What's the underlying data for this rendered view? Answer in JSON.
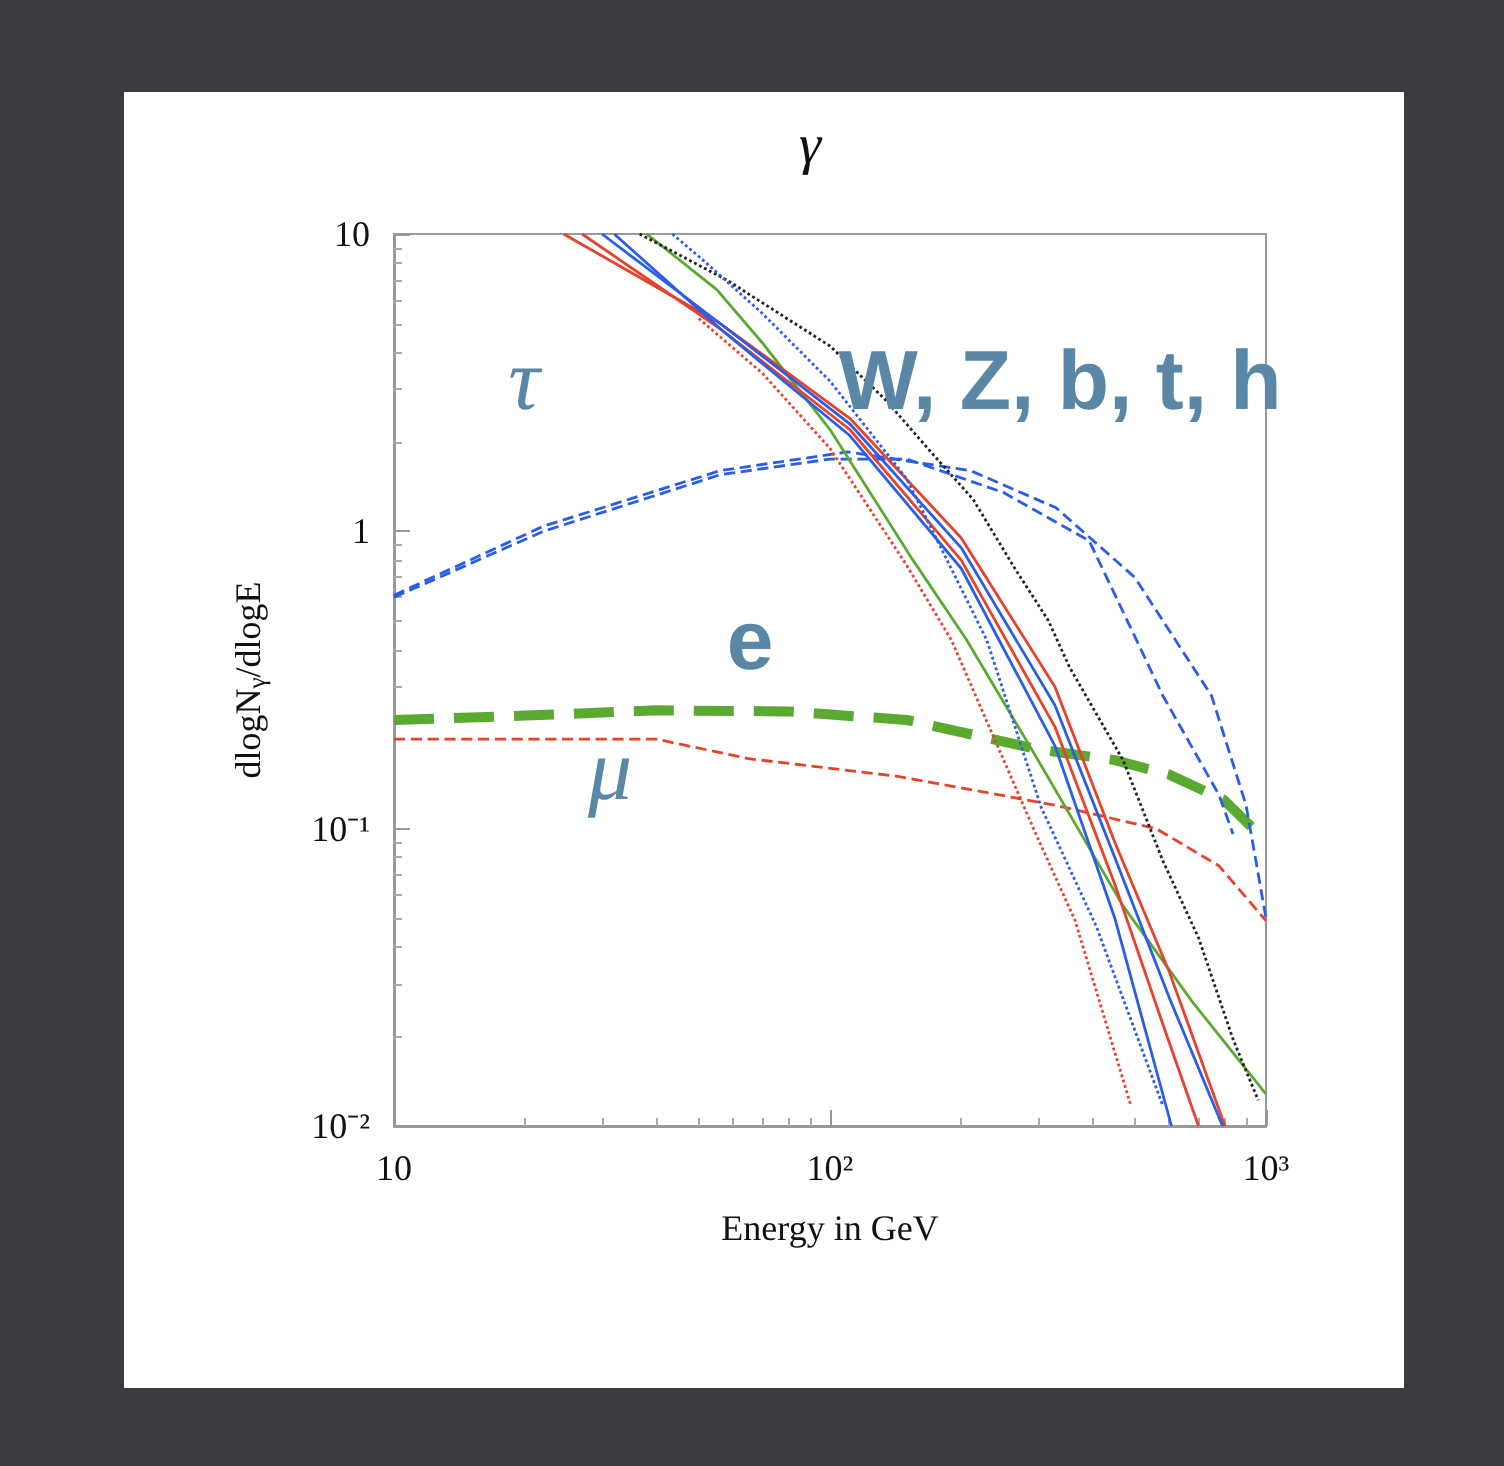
{
  "chart_data": {
    "type": "line",
    "title": "γ",
    "xlabel": "Energy in GeV",
    "ylabel": "dlogN$_{γ}$/dlogE",
    "log": "xy",
    "marker": "none",
    "grid": false,
    "xlim": [
      10,
      1000
    ],
    "xticks": [
      10,
      {
        "value": 100,
        "label": "10²"
      },
      {
        "value": 1000,
        "label": "10³"
      }
    ],
    "ylim": [
      0.01,
      10
    ],
    "yticks": [
      {
        "value": 0.01,
        "label": "10⁻²"
      },
      {
        "value": 0.1,
        "label": "10⁻¹"
      },
      1,
      10
    ],
    "annotations": [
      "τ",
      "e",
      "μ",
      "W, Z, b, t, h"
    ],
    "series": [
      {
        "color": "#5aaa32",
        "line_style": "dashed",
        "x": [
          10,
          20,
          40,
          80,
          150,
          300,
          450,
          600,
          800,
          970
        ],
        "values": [
          0.232,
          0.24,
          0.25,
          0.248,
          0.232,
          0.185,
          0.17,
          0.152,
          0.125,
          0.095
        ]
      },
      {
        "color": "#e8412c",
        "line_style": "dashed",
        "x": [
          10,
          20,
          40,
          65,
          143,
          328,
          560,
          780,
          1000
        ],
        "values": [
          0.2,
          0.2,
          0.2,
          0.172,
          0.15,
          0.12,
          0.1,
          0.075,
          0.049
        ]
      },
      {
        "color": "#2a5de8",
        "line_style": "dashed",
        "x": [
          10,
          22,
          56,
          110,
          210,
          330,
          500,
          750,
          900,
          1000
        ],
        "values": [
          0.61,
          1.04,
          1.6,
          1.85,
          1.6,
          1.2,
          0.7,
          0.28,
          0.12,
          0.05
        ]
      },
      {
        "color": "#2a5de8",
        "line_style": "dashed",
        "x": [
          10,
          22,
          56,
          100,
          150,
          250,
          393,
          505,
          580,
          780,
          840
        ],
        "values": [
          0.6,
          1.0,
          1.55,
          1.75,
          1.75,
          1.35,
          0.93,
          0.43,
          0.28,
          0.13,
          0.096
        ]
      },
      {
        "color": "#5aaa32",
        "line_style": "solid",
        "x": [
          38,
          55,
          70,
          100,
          155,
          206,
          300,
          470,
          680,
          1000
        ],
        "values": [
          10,
          6.5,
          4.3,
          2.2,
          0.8,
          0.43,
          0.17,
          0.055,
          0.026,
          0.0128
        ]
      },
      {
        "color": "#e8412c",
        "line_style": "solid",
        "x": [
          24.5,
          56,
          111,
          200,
          328,
          450,
          600,
          805
        ],
        "values": [
          10,
          5.0,
          2.4,
          0.95,
          0.3,
          0.09,
          0.033,
          0.01
        ]
      },
      {
        "color": "#e8412c",
        "line_style": "solid",
        "x": [
          27,
          56,
          111,
          200,
          328,
          450,
          580,
          700
        ],
        "values": [
          10,
          4.8,
          2.2,
          0.8,
          0.22,
          0.065,
          0.022,
          0.01
        ]
      },
      {
        "color": "#2a5de8",
        "line_style": "solid",
        "x": [
          30,
          56,
          111,
          200,
          328,
          450,
          600,
          795
        ],
        "values": [
          10,
          5.0,
          2.3,
          0.88,
          0.26,
          0.08,
          0.027,
          0.01
        ]
      },
      {
        "color": "#2a5de8",
        "line_style": "solid",
        "x": [
          32,
          56,
          111,
          200,
          328,
          450,
          607
        ],
        "values": [
          10,
          4.8,
          2.1,
          0.75,
          0.19,
          0.05,
          0.01
        ]
      },
      {
        "color": "#222222",
        "line_style": "dotted",
        "x": [
          36.6,
          58,
          100,
          134,
          172,
          213,
          264,
          317,
          354,
          470,
          580,
          700,
          840,
          960
        ],
        "values": [
          10,
          7,
          4.2,
          2.77,
          1.82,
          1.28,
          0.76,
          0.5,
          0.35,
          0.17,
          0.078,
          0.043,
          0.0196,
          0.0122
        ]
      },
      {
        "color": "#e8412c",
        "line_style": "dotted",
        "x": [
          50,
          70,
          100,
          149,
          190,
          293,
          365,
          490
        ],
        "values": [
          5.2,
          3.4,
          1.9,
          0.78,
          0.43,
          0.1,
          0.049,
          0.0117
        ]
      },
      {
        "color": "#2a5de8",
        "line_style": "dotted",
        "x": [
          43.5,
          51,
          70,
          100,
          150,
          229,
          305,
          408,
          580
        ],
        "values": [
          10,
          8.2,
          5.4,
          3.2,
          1.5,
          0.43,
          0.118,
          0.047,
          0.0117
        ]
      }
    ]
  }
}
